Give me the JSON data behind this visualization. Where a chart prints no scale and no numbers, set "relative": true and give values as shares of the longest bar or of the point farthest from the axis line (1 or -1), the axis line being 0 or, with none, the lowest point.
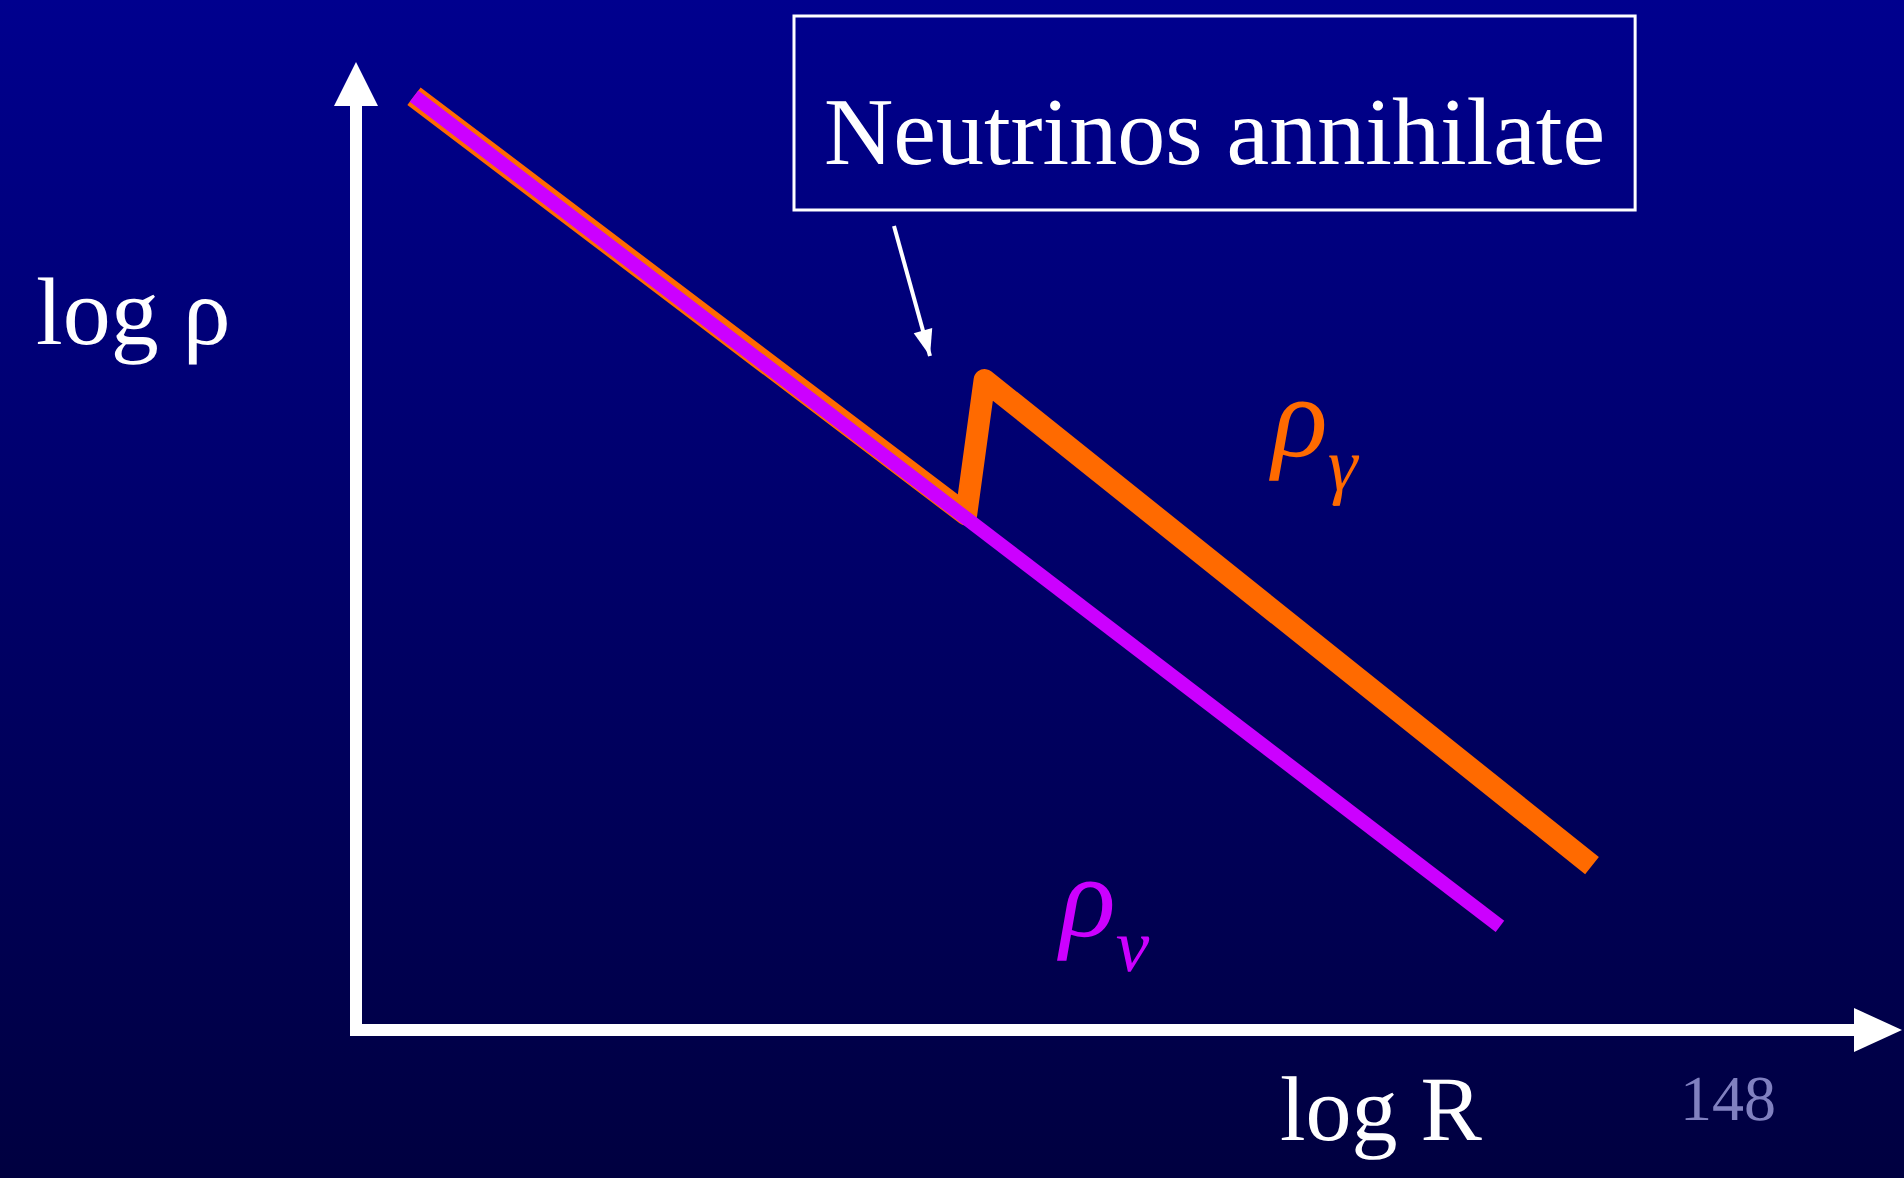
{
  "chart_data": {
    "type": "line",
    "relative": true,
    "xlabel": "log R",
    "ylabel": "log ρ",
    "legend": false,
    "marker": "none",
    "line_style": "solid",
    "categories": [
      null,
      null,
      null,
      null,
      null,
      null,
      null,
      null,
      null,
      null,
      null,
      null,
      null,
      null,
      null,
      null,
      null,
      null,
      null,
      null,
      null,
      null,
      null,
      null,
      null,
      null,
      null,
      null,
      null,
      null,
      null,
      null,
      null,
      null,
      null,
      null,
      null,
      null,
      null,
      null,
      null,
      null,
      null,
      null,
      null,
      null,
      null,
      null,
      null,
      null,
      null,
      null,
      null,
      null,
      null,
      null,
      null,
      null,
      null,
      null,
      null,
      null,
      null,
      null,
      null
    ],
    "series": [
      {
        "name": "ρ$_{γ}$",
        "color": "#ff6a00",
        "values": [
          1,
          null,
          null,
          null,
          null,
          null,
          null,
          null,
          null,
          null,
          null,
          null,
          null,
          null,
          null,
          null,
          null,
          null,
          null,
          null,
          null,
          null,
          null,
          null,
          null,
          null,
          null,
          null,
          null,
          null,
          0.552,
          0.696,
          null,
          null,
          null,
          null,
          null,
          null,
          null,
          null,
          null,
          null,
          null,
          null,
          null,
          null,
          null,
          null,
          null,
          null,
          null,
          null,
          null,
          null,
          null,
          null,
          null,
          null,
          null,
          null,
          null,
          null,
          null,
          null,
          0.176
        ]
      },
      {
        "name": "ρ$_{ν}$",
        "color": "#cc00ff",
        "values": [
          1,
          null,
          null,
          null,
          null,
          null,
          null,
          null,
          null,
          null,
          null,
          null,
          null,
          null,
          null,
          null,
          null,
          null,
          null,
          null,
          null,
          null,
          null,
          null,
          null,
          null,
          null,
          null,
          null,
          null,
          null,
          null,
          null,
          null,
          null,
          null,
          null,
          null,
          null,
          null,
          null,
          null,
          null,
          null,
          null,
          null,
          null,
          null,
          null,
          null,
          null,
          null,
          null,
          null,
          null,
          null,
          null,
          null,
          null,
          0.111,
          null,
          null,
          null,
          null,
          null
        ]
      }
    ],
    "annotations": [
      "Neutrinos annihilate",
      "148"
    ]
  }
}
